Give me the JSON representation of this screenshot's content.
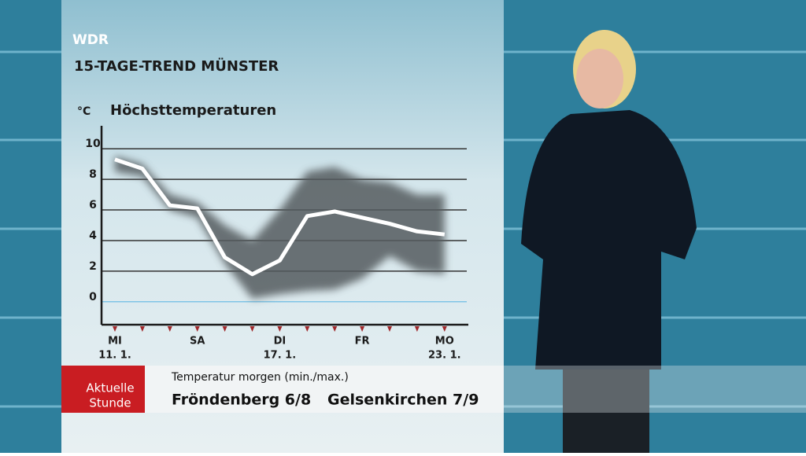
{
  "channel": "WDR",
  "heading": "15-TAGE-TREND MÜNSTER",
  "logo": [
    "Aktuelle",
    "Stunde"
  ],
  "ticker": {
    "title": "Temperatur morgen (min./max.)",
    "items": [
      "Fröndenberg 6/8",
      "Gelsenkirchen 7/9"
    ]
  },
  "chart_data": {
    "type": "line",
    "title": "Höchsttemperaturen",
    "y_label": "°C",
    "categories": [
      "MI",
      null,
      null,
      "SA",
      null,
      null,
      "DI",
      null,
      null,
      "FR",
      null,
      null,
      "MO"
    ],
    "dates": [
      "11. 1.",
      null,
      null,
      null,
      null,
      null,
      "17. 1.",
      null,
      null,
      null,
      null,
      null,
      "23. 1."
    ],
    "series": [
      {
        "color": "#ffffff",
        "values": [
          9.3,
          8.7,
          6.3,
          6.1,
          2.9,
          1.8,
          2.7,
          5.6,
          5.9,
          5.5,
          5.1,
          4.6,
          4.4
        ]
      }
    ],
    "range": {
      "color": "#555b5e",
      "low": [
        8.5,
        8.2,
        6,
        5.5,
        2.5,
        0.2,
        0.5,
        0.7,
        0.8,
        1.5,
        3,
        2,
        1.8
      ],
      "high": [
        9.5,
        9,
        7,
        6.5,
        5,
        4,
        6,
        8.5,
        8.8,
        8,
        7.8,
        7,
        7
      ]
    },
    "ylim": [
      -1.5,
      11.5
    ],
    "yticks": [
      0,
      2,
      4,
      6,
      8,
      10
    ],
    "grid": true,
    "grid_color": "#333333",
    "zero_line_color": "#7fc4e6",
    "tick_color": "#a0282b"
  }
}
